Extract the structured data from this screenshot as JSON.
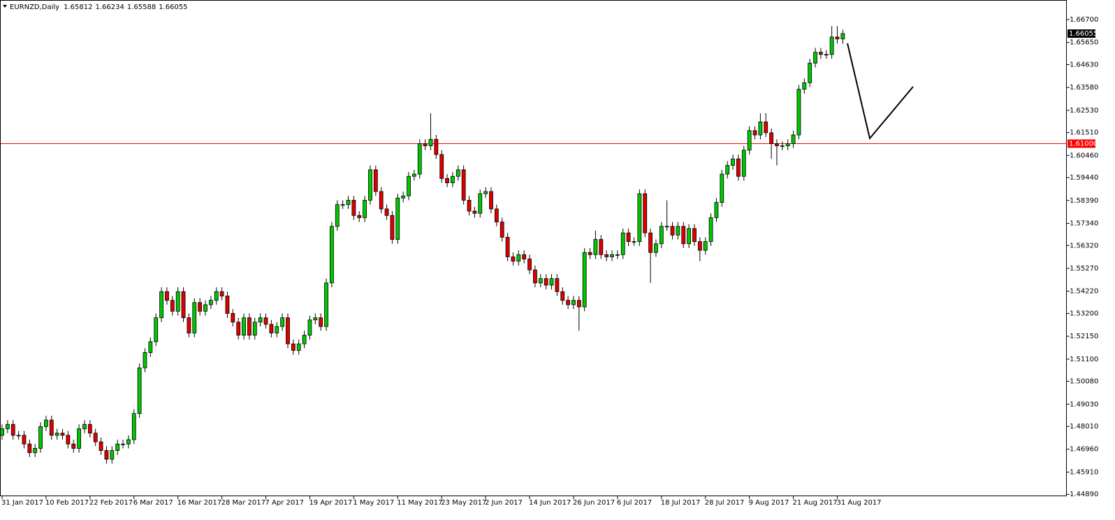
{
  "chart_data": {
    "type": "candlestick",
    "title": "EURNZD,Daily",
    "up_color": "#00c800",
    "down_color": "#e00000",
    "ylim": [
      1.448,
      1.676
    ],
    "yticks": [
      {
        "value": 1.667,
        "label": "1.66700"
      },
      {
        "value": 1.6565,
        "label": "1.65650"
      },
      {
        "value": 1.6463,
        "label": "1.64630"
      },
      {
        "value": 1.6358,
        "label": "1.63580"
      },
      {
        "value": 1.6253,
        "label": "1.62530"
      },
      {
        "value": 1.6151,
        "label": "1.61510"
      },
      {
        "value": 1.6046,
        "label": "1.60460"
      },
      {
        "value": 1.5944,
        "label": "1.59440"
      },
      {
        "value": 1.5839,
        "label": "1.58390"
      },
      {
        "value": 1.5734,
        "label": "1.57340"
      },
      {
        "value": 1.5632,
        "label": "1.56320"
      },
      {
        "value": 1.5527,
        "label": "1.55270"
      },
      {
        "value": 1.5422,
        "label": "1.54220"
      },
      {
        "value": 1.532,
        "label": "1.53200"
      },
      {
        "value": 1.5215,
        "label": "1.52150"
      },
      {
        "value": 1.511,
        "label": "1.51100"
      },
      {
        "value": 1.5008,
        "label": "1.50080"
      },
      {
        "value": 1.4903,
        "label": "1.49030"
      },
      {
        "value": 1.4801,
        "label": "1.48010"
      },
      {
        "value": 1.4696,
        "label": "1.46960"
      },
      {
        "value": 1.4591,
        "label": "1.45910"
      },
      {
        "value": 1.4489,
        "label": "1.44890"
      }
    ],
    "hline": {
      "value": 1.61,
      "label": "1.61000",
      "color": "#ff0000"
    },
    "categories": [
      "31 Jan 2017",
      null,
      null,
      null,
      null,
      null,
      null,
      null,
      "10 Feb 2017",
      null,
      null,
      null,
      null,
      null,
      null,
      null,
      "22 Feb 2017",
      null,
      null,
      null,
      null,
      null,
      null,
      null,
      "6 Mar 2017",
      null,
      null,
      null,
      null,
      null,
      null,
      null,
      "16 Mar 2017",
      null,
      null,
      null,
      null,
      null,
      null,
      null,
      "28 Mar 2017",
      null,
      null,
      null,
      null,
      null,
      null,
      null,
      "7 Apr 2017",
      null,
      null,
      null,
      null,
      null,
      null,
      null,
      "19 Apr 2017",
      null,
      null,
      null,
      null,
      null,
      null,
      null,
      "1 May 2017",
      null,
      null,
      null,
      null,
      null,
      null,
      null,
      "11 May 2017",
      null,
      null,
      null,
      null,
      null,
      null,
      null,
      "23 May 2017",
      null,
      null,
      null,
      null,
      null,
      null,
      null,
      "2 Jun 2017",
      null,
      null,
      null,
      null,
      null,
      null,
      null,
      "14 Jun 2017",
      null,
      null,
      null,
      null,
      null,
      null,
      null,
      "26 Jun 2017",
      null,
      null,
      null,
      null,
      null,
      null,
      null,
      "6 Jul 2017",
      null,
      null,
      null,
      null,
      null,
      null,
      null,
      "18 Jul 2017",
      null,
      null,
      null,
      null,
      null,
      null,
      null,
      "28 Jul 2017",
      null,
      null,
      null,
      null,
      null,
      null,
      null,
      "9 Aug 2017",
      null,
      null,
      null,
      null,
      null,
      null,
      null,
      "21 Aug 2017",
      null,
      null,
      null,
      null,
      null,
      null,
      null,
      "31 Aug 2017",
      null
    ],
    "ohlc": [
      [
        1.476,
        1.481,
        1.474,
        1.479
      ],
      [
        1.479,
        1.483,
        1.477,
        1.481
      ],
      [
        1.481,
        1.483,
        1.474,
        1.476
      ],
      [
        1.476,
        1.478,
        1.474,
        1.476
      ],
      [
        1.476,
        1.478,
        1.47,
        1.472
      ],
      [
        1.472,
        1.474,
        1.466,
        1.468
      ],
      [
        1.468,
        1.472,
        1.466,
        1.47
      ],
      [
        1.47,
        1.482,
        1.468,
        1.48
      ],
      [
        1.48,
        1.485,
        1.478,
        1.483
      ],
      [
        1.483,
        1.485,
        1.474,
        1.476
      ],
      [
        1.476,
        1.479,
        1.474,
        1.477
      ],
      [
        1.477,
        1.479,
        1.474,
        1.476
      ],
      [
        1.476,
        1.478,
        1.47,
        1.472
      ],
      [
        1.472,
        1.474,
        1.468,
        1.47
      ],
      [
        1.47,
        1.481,
        1.468,
        1.479
      ],
      [
        1.479,
        1.483,
        1.477,
        1.481
      ],
      [
        1.481,
        1.483,
        1.475,
        1.477
      ],
      [
        1.477,
        1.479,
        1.471,
        1.473
      ],
      [
        1.473,
        1.475,
        1.467,
        1.469
      ],
      [
        1.469,
        1.471,
        1.463,
        1.465
      ],
      [
        1.465,
        1.471,
        1.463,
        1.469
      ],
      [
        1.469,
        1.474,
        1.467,
        1.472
      ],
      [
        1.472,
        1.474,
        1.47,
        1.472
      ],
      [
        1.472,
        1.476,
        1.47,
        1.474
      ],
      [
        1.474,
        1.488,
        1.472,
        1.486
      ],
      [
        1.486,
        1.509,
        1.484,
        1.507
      ],
      [
        1.507,
        1.516,
        1.505,
        1.514
      ],
      [
        1.514,
        1.521,
        1.512,
        1.519
      ],
      [
        1.519,
        1.532,
        1.517,
        1.53
      ],
      [
        1.53,
        1.544,
        1.528,
        1.542
      ],
      [
        1.542,
        1.544,
        1.536,
        1.538
      ],
      [
        1.538,
        1.54,
        1.531,
        1.533
      ],
      [
        1.533,
        1.544,
        1.531,
        1.542
      ],
      [
        1.542,
        1.544,
        1.528,
        1.53
      ],
      [
        1.53,
        1.532,
        1.521,
        1.523
      ],
      [
        1.523,
        1.539,
        1.521,
        1.537
      ],
      [
        1.537,
        1.539,
        1.531,
        1.533
      ],
      [
        1.533,
        1.538,
        1.531,
        1.536
      ],
      [
        1.536,
        1.54,
        1.534,
        1.538
      ],
      [
        1.538,
        1.544,
        1.536,
        1.542
      ],
      [
        1.542,
        1.544,
        1.538,
        1.54
      ],
      [
        1.54,
        1.542,
        1.53,
        1.532
      ],
      [
        1.532,
        1.534,
        1.526,
        1.528
      ],
      [
        1.528,
        1.53,
        1.52,
        1.522
      ],
      [
        1.522,
        1.532,
        1.52,
        1.53
      ],
      [
        1.53,
        1.532,
        1.52,
        1.522
      ],
      [
        1.522,
        1.53,
        1.52,
        1.528
      ],
      [
        1.528,
        1.532,
        1.526,
        1.53
      ],
      [
        1.53,
        1.532,
        1.525,
        1.527
      ],
      [
        1.527,
        1.529,
        1.521,
        1.523
      ],
      [
        1.523,
        1.528,
        1.521,
        1.526
      ],
      [
        1.526,
        1.532,
        1.524,
        1.53
      ],
      [
        1.53,
        1.532,
        1.516,
        1.518
      ],
      [
        1.518,
        1.52,
        1.513,
        1.515
      ],
      [
        1.515,
        1.52,
        1.513,
        1.518
      ],
      [
        1.518,
        1.524,
        1.516,
        1.522
      ],
      [
        1.522,
        1.531,
        1.52,
        1.529
      ],
      [
        1.529,
        1.532,
        1.527,
        1.53
      ],
      [
        1.53,
        1.532,
        1.524,
        1.526
      ],
      [
        1.526,
        1.548,
        1.524,
        1.546
      ],
      [
        1.546,
        1.574,
        1.544,
        1.572
      ],
      [
        1.572,
        1.584,
        1.57,
        1.582
      ],
      [
        1.582,
        1.584,
        1.58,
        1.582
      ],
      [
        1.582,
        1.586,
        1.58,
        1.584
      ],
      [
        1.584,
        1.586,
        1.575,
        1.577
      ],
      [
        1.577,
        1.579,
        1.574,
        1.576
      ],
      [
        1.576,
        1.586,
        1.574,
        1.584
      ],
      [
        1.584,
        1.6,
        1.582,
        1.598
      ],
      [
        1.598,
        1.6,
        1.586,
        1.588
      ],
      [
        1.588,
        1.59,
        1.578,
        1.58
      ],
      [
        1.58,
        1.582,
        1.575,
        1.577
      ],
      [
        1.577,
        1.579,
        1.564,
        1.566
      ],
      [
        1.566,
        1.587,
        1.564,
        1.585
      ],
      [
        1.585,
        1.588,
        1.583,
        1.586
      ],
      [
        1.586,
        1.597,
        1.584,
        1.595
      ],
      [
        1.595,
        1.598,
        1.593,
        1.596
      ],
      [
        1.596,
        1.612,
        1.594,
        1.61
      ],
      [
        1.61,
        1.612,
        1.607,
        1.609
      ],
      [
        1.609,
        1.624,
        1.607,
        1.612
      ],
      [
        1.612,
        1.614,
        1.603,
        1.605
      ],
      [
        1.605,
        1.607,
        1.592,
        1.594
      ],
      [
        1.594,
        1.596,
        1.59,
        1.592
      ],
      [
        1.592,
        1.597,
        1.59,
        1.595
      ],
      [
        1.595,
        1.6,
        1.593,
        1.598
      ],
      [
        1.598,
        1.6,
        1.582,
        1.584
      ],
      [
        1.584,
        1.586,
        1.577,
        1.579
      ],
      [
        1.579,
        1.581,
        1.576,
        1.578
      ],
      [
        1.578,
        1.589,
        1.576,
        1.587
      ],
      [
        1.587,
        1.59,
        1.585,
        1.588
      ],
      [
        1.588,
        1.59,
        1.578,
        1.58
      ],
      [
        1.58,
        1.582,
        1.572,
        1.574
      ],
      [
        1.574,
        1.576,
        1.565,
        1.567
      ],
      [
        1.567,
        1.569,
        1.556,
        1.558
      ],
      [
        1.558,
        1.56,
        1.554,
        1.556
      ],
      [
        1.556,
        1.561,
        1.554,
        1.559
      ],
      [
        1.559,
        1.561,
        1.555,
        1.557
      ],
      [
        1.557,
        1.559,
        1.55,
        1.552
      ],
      [
        1.552,
        1.554,
        1.544,
        1.546
      ],
      [
        1.546,
        1.55,
        1.544,
        1.548
      ],
      [
        1.548,
        1.55,
        1.543,
        1.545
      ],
      [
        1.545,
        1.55,
        1.543,
        1.548
      ],
      [
        1.548,
        1.55,
        1.54,
        1.542
      ],
      [
        1.542,
        1.544,
        1.536,
        1.538
      ],
      [
        1.538,
        1.54,
        1.534,
        1.536
      ],
      [
        1.536,
        1.54,
        1.534,
        1.538
      ],
      [
        1.538,
        1.54,
        1.524,
        1.535
      ],
      [
        1.535,
        1.562,
        1.533,
        1.56
      ],
      [
        1.56,
        1.562,
        1.557,
        1.559
      ],
      [
        1.559,
        1.57,
        1.557,
        1.566
      ],
      [
        1.566,
        1.568,
        1.557,
        1.559
      ],
      [
        1.559,
        1.561,
        1.556,
        1.558
      ],
      [
        1.558,
        1.561,
        1.556,
        1.559
      ],
      [
        1.559,
        1.561,
        1.557,
        1.559
      ],
      [
        1.559,
        1.571,
        1.557,
        1.569
      ],
      [
        1.569,
        1.571,
        1.563,
        1.565
      ],
      [
        1.565,
        1.567,
        1.563,
        1.565
      ],
      [
        1.565,
        1.589,
        1.563,
        1.587
      ],
      [
        1.587,
        1.589,
        1.567,
        1.569
      ],
      [
        1.569,
        1.571,
        1.546,
        1.56
      ],
      [
        1.56,
        1.566,
        1.558,
        1.564
      ],
      [
        1.564,
        1.574,
        1.562,
        1.572
      ],
      [
        1.572,
        1.584,
        1.57,
        1.572
      ],
      [
        1.572,
        1.574,
        1.566,
        1.568
      ],
      [
        1.568,
        1.574,
        1.566,
        1.572
      ],
      [
        1.572,
        1.574,
        1.562,
        1.564
      ],
      [
        1.564,
        1.573,
        1.562,
        1.571
      ],
      [
        1.571,
        1.573,
        1.563,
        1.565
      ],
      [
        1.565,
        1.567,
        1.556,
        1.561
      ],
      [
        1.561,
        1.567,
        1.559,
        1.565
      ],
      [
        1.565,
        1.578,
        1.563,
        1.576
      ],
      [
        1.576,
        1.585,
        1.574,
        1.583
      ],
      [
        1.583,
        1.598,
        1.581,
        1.596
      ],
      [
        1.596,
        1.602,
        1.594,
        1.6
      ],
      [
        1.6,
        1.605,
        1.598,
        1.603
      ],
      [
        1.603,
        1.605,
        1.593,
        1.595
      ],
      [
        1.595,
        1.609,
        1.593,
        1.607
      ],
      [
        1.607,
        1.618,
        1.605,
        1.616
      ],
      [
        1.616,
        1.618,
        1.612,
        1.614
      ],
      [
        1.614,
        1.624,
        1.612,
        1.62
      ],
      [
        1.62,
        1.624,
        1.613,
        1.615
      ],
      [
        1.615,
        1.617,
        1.603,
        1.61
      ],
      [
        1.61,
        1.612,
        1.6,
        1.609
      ],
      [
        1.609,
        1.611,
        1.607,
        1.609
      ],
      [
        1.609,
        1.612,
        1.607,
        1.61
      ],
      [
        1.61,
        1.616,
        1.608,
        1.614
      ],
      [
        1.614,
        1.637,
        1.612,
        1.635
      ],
      [
        1.635,
        1.64,
        1.633,
        1.638
      ],
      [
        1.638,
        1.649,
        1.636,
        1.647
      ],
      [
        1.647,
        1.654,
        1.645,
        1.652
      ],
      [
        1.652,
        1.654,
        1.649,
        1.651
      ],
      [
        1.651,
        1.653,
        1.649,
        1.651
      ],
      [
        1.651,
        1.664,
        1.649,
        1.659
      ],
      [
        1.659,
        1.664,
        1.656,
        1.6581
      ],
      [
        1.65812,
        1.66234,
        1.65588,
        1.66055
      ]
    ]
  }
}
